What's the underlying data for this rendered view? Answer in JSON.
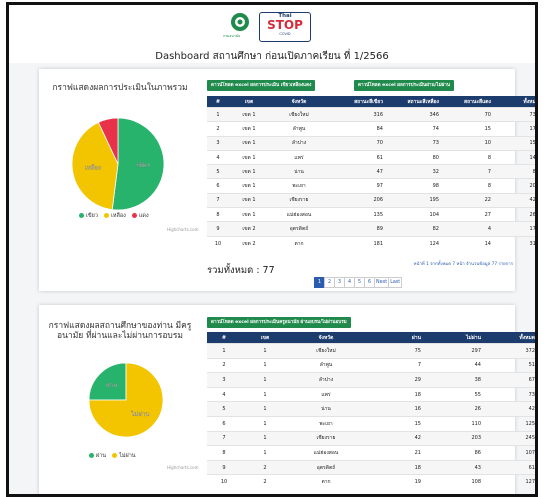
{
  "header": {
    "logo_caption": "กรมอนามัย",
    "logo_thai": "Thai",
    "logo_stop": "STOP",
    "logo_covid": "COVID",
    "title": "Dashboard สถานศึกษา ก่อนเปิดภาคเรียน ที่ 1/2566"
  },
  "panel1": {
    "chart_title": "กราฟแสดงผลการประเมินในภาพรวม",
    "pie": {
      "type": "pie",
      "slices": [
        {
          "name": "เขียว",
          "color": "#27b36b",
          "value": 52
        },
        {
          "name": "เหลือง",
          "color": "#f2c500",
          "value": 41
        },
        {
          "name": "แดง",
          "color": "#e8324a",
          "value": 7
        }
      ]
    },
    "credit": "Highcharts.com",
    "buttons": [
      "ดาวน์โหลด excel ผลการประเมิน เขียวเหลืองแดง",
      "ดาวน์โหลด excel ผลการประเมินผ่าน/ไม่ผ่าน"
    ],
    "table": {
      "columns": [
        "#",
        "เขต",
        "จังหวัด",
        "สถานะสีเขียว",
        "สถานะสีเหลือง",
        "สถานะสีแดง",
        "ทั้งหมด"
      ],
      "rows": [
        [
          1,
          "เขต 1",
          "เชียงใหม่",
          316,
          346,
          70,
          732
        ],
        [
          2,
          "เขต 1",
          "ลำพูน",
          84,
          74,
          15,
          173
        ],
        [
          3,
          "เขต 1",
          "ลำปาง",
          70,
          73,
          10,
          153
        ],
        [
          4,
          "เขต 1",
          "แพร่",
          61,
          80,
          8,
          149
        ],
        [
          5,
          "เขต 1",
          "น่าน",
          47,
          32,
          7,
          86
        ],
        [
          6,
          "เขต 1",
          "พะเยา",
          97,
          98,
          8,
          203
        ],
        [
          7,
          "เขต 1",
          "เชียงราย",
          206,
          195,
          22,
          423
        ],
        [
          8,
          "เขต 1",
          "แม่ฮ่องสอน",
          135,
          104,
          27,
          266
        ],
        [
          9,
          "เขต 2",
          "อุตรดิตถ์",
          89,
          82,
          4,
          175
        ],
        [
          10,
          "เขต 2",
          "ตาก",
          181,
          124,
          14,
          319
        ]
      ]
    },
    "total": "รวมทั้งหมด : 77",
    "page_info": "หน้าที่ 1 จากทั้งหมด 7 หน้า จำนวนข้อมูล 77 รายการ",
    "pagination": [
      "1",
      "2",
      "3",
      "4",
      "5",
      "6",
      "Next",
      "Last"
    ]
  },
  "panel2": {
    "chart_title": "กราฟแสดงผลสถานศึกษาของท่าน มีครูอนามัย ที่ผ่านและไม่ผ่านการอบรม",
    "pie": {
      "type": "pie",
      "slices": [
        {
          "name": "ผ่าน",
          "color": "#27b36b",
          "value": 25
        },
        {
          "name": "ไม่ผ่าน",
          "color": "#f2c500",
          "value": 75
        }
      ]
    },
    "credit": "Highcharts.com",
    "buttons": [
      "ดาวน์โหลด excel ผลการประเมินครูอนามัย ผ่านอบรม/ไม่ผ่านอบรม"
    ],
    "table": {
      "columns": [
        "#",
        "เขต",
        "จังหวัด",
        "ผ่าน",
        "ไม่ผ่าน",
        "ทั้งหมด"
      ],
      "rows": [
        [
          1,
          1,
          "เชียงใหม่",
          75,
          297,
          372
        ],
        [
          2,
          1,
          "ลำพูน",
          7,
          44,
          51
        ],
        [
          3,
          1,
          "ลำปาง",
          29,
          38,
          67
        ],
        [
          4,
          1,
          "แพร่",
          18,
          55,
          73
        ],
        [
          5,
          1,
          "น่าน",
          16,
          26,
          42
        ],
        [
          6,
          1,
          "พะเยา",
          15,
          110,
          125
        ],
        [
          7,
          1,
          "เชียงราย",
          42,
          203,
          245
        ],
        [
          8,
          1,
          "แม่ฮ่องสอน",
          21,
          86,
          107
        ],
        [
          9,
          2,
          "อุตรดิตถ์",
          18,
          43,
          61
        ],
        [
          10,
          2,
          "ตาก",
          19,
          108,
          127
        ]
      ]
    }
  }
}
